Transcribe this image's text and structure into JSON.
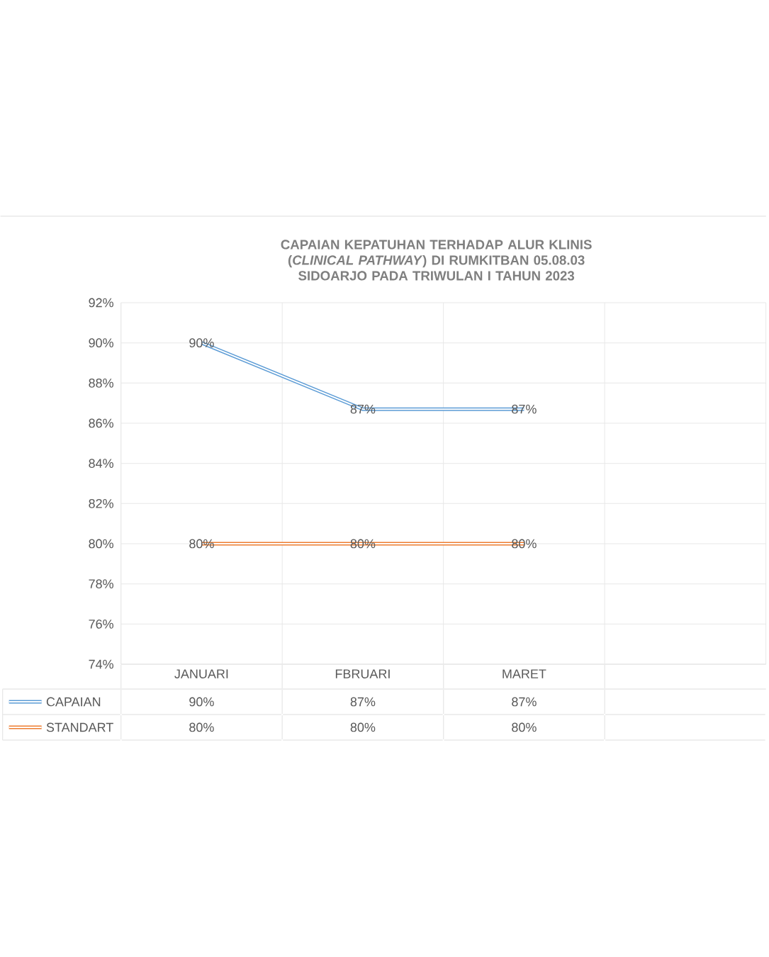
{
  "chart_data": {
    "type": "line",
    "title": "CAPAIAN KEPATUHAN TERHADAP ALUR KLINIS (*CLINICAL PATHWAY*) DI RUMKITBAN 05.08.03 SIDOARJO PADA TRIWULAN I TAHUN 2023",
    "categories": [
      "JANUARI",
      "FBRUARI",
      "MARET",
      null
    ],
    "series": [
      {
        "name": "CAPAIAN",
        "color": "#5b9bd5",
        "values": [
          90,
          86.7,
          86.7,
          null
        ],
        "value_labels": [
          "90%",
          "87%",
          "87%",
          null
        ]
      },
      {
        "name": "STANDART",
        "color": "#ed7d31",
        "values": [
          80,
          80,
          80,
          null
        ],
        "value_labels": [
          "80%",
          "80%",
          "80%",
          null
        ]
      }
    ],
    "ylim": [
      74,
      92
    ],
    "yticks": [
      {
        "value": 74,
        "label": "74%"
      },
      {
        "value": 76,
        "label": "76%"
      },
      {
        "value": 78,
        "label": "78%"
      },
      {
        "value": 80,
        "label": "80%"
      },
      {
        "value": 82,
        "label": "82%"
      },
      {
        "value": 84,
        "label": "84%"
      },
      {
        "value": 86,
        "label": "86%"
      },
      {
        "value": 88,
        "label": "88%"
      },
      {
        "value": 90,
        "label": "90%"
      },
      {
        "value": 92,
        "label": "92%"
      }
    ],
    "grid": true,
    "legend": "bottom",
    "line_style": "solid",
    "marker": "none"
  }
}
